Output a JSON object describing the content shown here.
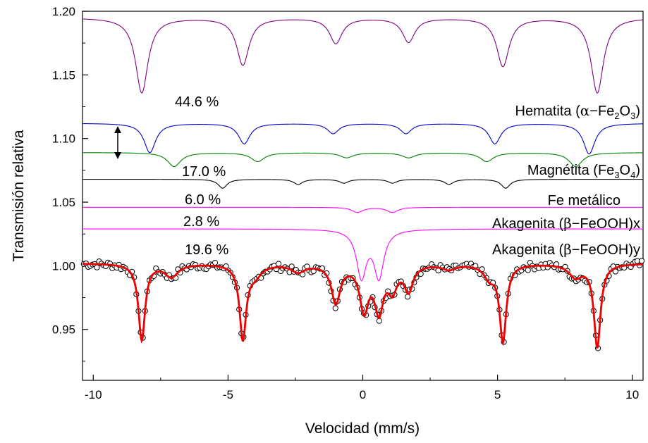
{
  "chart_data": {
    "type": "line",
    "title": "",
    "xlabel": "Velocidad (mm/s)",
    "ylabel": "Transmisión relativa",
    "xlim": [
      -10.4,
      10.4
    ],
    "ylim": [
      0.91,
      1.2
    ],
    "x_ticks": [
      -10,
      -5,
      0,
      5,
      10
    ],
    "x_tick_labels": [
      "-10",
      "-5",
      "0",
      "5",
      "10"
    ],
    "y_ticks": [
      0.95,
      1.0,
      1.05,
      1.1,
      1.15,
      1.2
    ],
    "y_tick_labels": [
      "0.95",
      "1.00",
      "1.05",
      "1.10",
      "1.15",
      "1.20"
    ],
    "grid": false,
    "colors": {
      "hematita": "#800080",
      "magnetita_a": "#0000cc",
      "magnetita_b": "#008000",
      "fe_metalico": "#000000",
      "akagenita": "#ff00ff",
      "fit": "#ee0000",
      "points": "#000000"
    },
    "series": [
      {
        "key": "hematita",
        "baseline": 1.195,
        "lines": [
          [
            -8.2,
            0.059,
            0.28
          ],
          [
            -4.45,
            0.037,
            0.28
          ],
          [
            -1.0,
            0.02,
            0.28
          ],
          [
            1.7,
            0.019,
            0.28
          ],
          [
            5.2,
            0.038,
            0.28
          ],
          [
            8.7,
            0.059,
            0.28
          ]
        ]
      },
      {
        "key": "magnetita_a",
        "baseline": 1.112,
        "lines": [
          [
            -7.9,
            0.023,
            0.26
          ],
          [
            -4.4,
            0.016,
            0.26
          ],
          [
            -1.1,
            0.008,
            0.26
          ],
          [
            1.6,
            0.008,
            0.26
          ],
          [
            4.9,
            0.016,
            0.26
          ],
          [
            8.4,
            0.024,
            0.26
          ]
        ]
      },
      {
        "key": "magnetita_b",
        "baseline": 1.089,
        "lines": [
          [
            -7.0,
            0.011,
            0.3
          ],
          [
            -3.9,
            0.007,
            0.3
          ],
          [
            -0.6,
            0.004,
            0.3
          ],
          [
            1.7,
            0.004,
            0.3
          ],
          [
            4.6,
            0.007,
            0.3
          ],
          [
            7.9,
            0.011,
            0.3
          ]
        ]
      },
      {
        "key": "fe_metalico",
        "baseline": 1.068,
        "lines": [
          [
            -5.2,
            0.007,
            0.2
          ],
          [
            -2.4,
            0.004,
            0.2
          ],
          [
            -0.7,
            0.003,
            0.2
          ],
          [
            1.1,
            0.003,
            0.2
          ],
          [
            3.2,
            0.004,
            0.2
          ],
          [
            5.3,
            0.007,
            0.2
          ]
        ]
      },
      {
        "key": "akagenita_x",
        "baseline": 1.046,
        "lines": [
          [
            -0.2,
            0.004,
            0.25
          ],
          [
            1.1,
            0.004,
            0.25
          ]
        ]
      },
      {
        "key": "akagenita_y",
        "baseline": 1.029,
        "lines": [
          [
            -0.05,
            0.037,
            0.22
          ],
          [
            0.6,
            0.037,
            0.22
          ]
        ]
      },
      {
        "key": "fit",
        "baseline": 1.002,
        "lines": [
          [
            -8.2,
            0.06,
            0.15
          ],
          [
            -7.1,
            0.01,
            0.3
          ],
          [
            -4.45,
            0.058,
            0.15
          ],
          [
            -4.0,
            0.008,
            0.3
          ],
          [
            -2.4,
            0.006,
            0.3
          ],
          [
            -1.0,
            0.03,
            0.2
          ],
          [
            0.05,
            0.035,
            0.2
          ],
          [
            0.6,
            0.035,
            0.2
          ],
          [
            1.1,
            0.018,
            0.2
          ],
          [
            1.7,
            0.02,
            0.2
          ],
          [
            3.2,
            0.004,
            0.3
          ],
          [
            4.7,
            0.01,
            0.25
          ],
          [
            5.2,
            0.06,
            0.15
          ],
          [
            7.9,
            0.01,
            0.3
          ],
          [
            8.7,
            0.065,
            0.15
          ]
        ]
      }
    ],
    "annotations": [
      {
        "key": "hematita_pct",
        "text": "44.6 %"
      },
      {
        "key": "hematita_name",
        "main": "Hematita (",
        "greek": "α",
        "mid": "−Fe",
        "sub1": "2",
        "mid2": "O",
        "sub2": "3",
        "end": ")"
      },
      {
        "key": "magnetita_pct",
        "text": "17.0 %"
      },
      {
        "key": "magnetita_name",
        "main": "Magnétita (Fe",
        "sub1": "3",
        "mid": "O",
        "sub2": "4",
        "end": ")"
      },
      {
        "key": "fe_pct",
        "text": "6.0 %"
      },
      {
        "key": "fe_name",
        "text": "Fe metálico"
      },
      {
        "key": "akax_pct",
        "text": "2.8 %"
      },
      {
        "key": "akax_name",
        "main": "Akagenita (",
        "greek": "β",
        "end": "−FeOOH)x"
      },
      {
        "key": "akay_pct",
        "text": "19.6 %"
      },
      {
        "key": "akay_name",
        "main": "Akagenita (",
        "greek": "β",
        "end": "−FeOOH)y"
      }
    ]
  }
}
